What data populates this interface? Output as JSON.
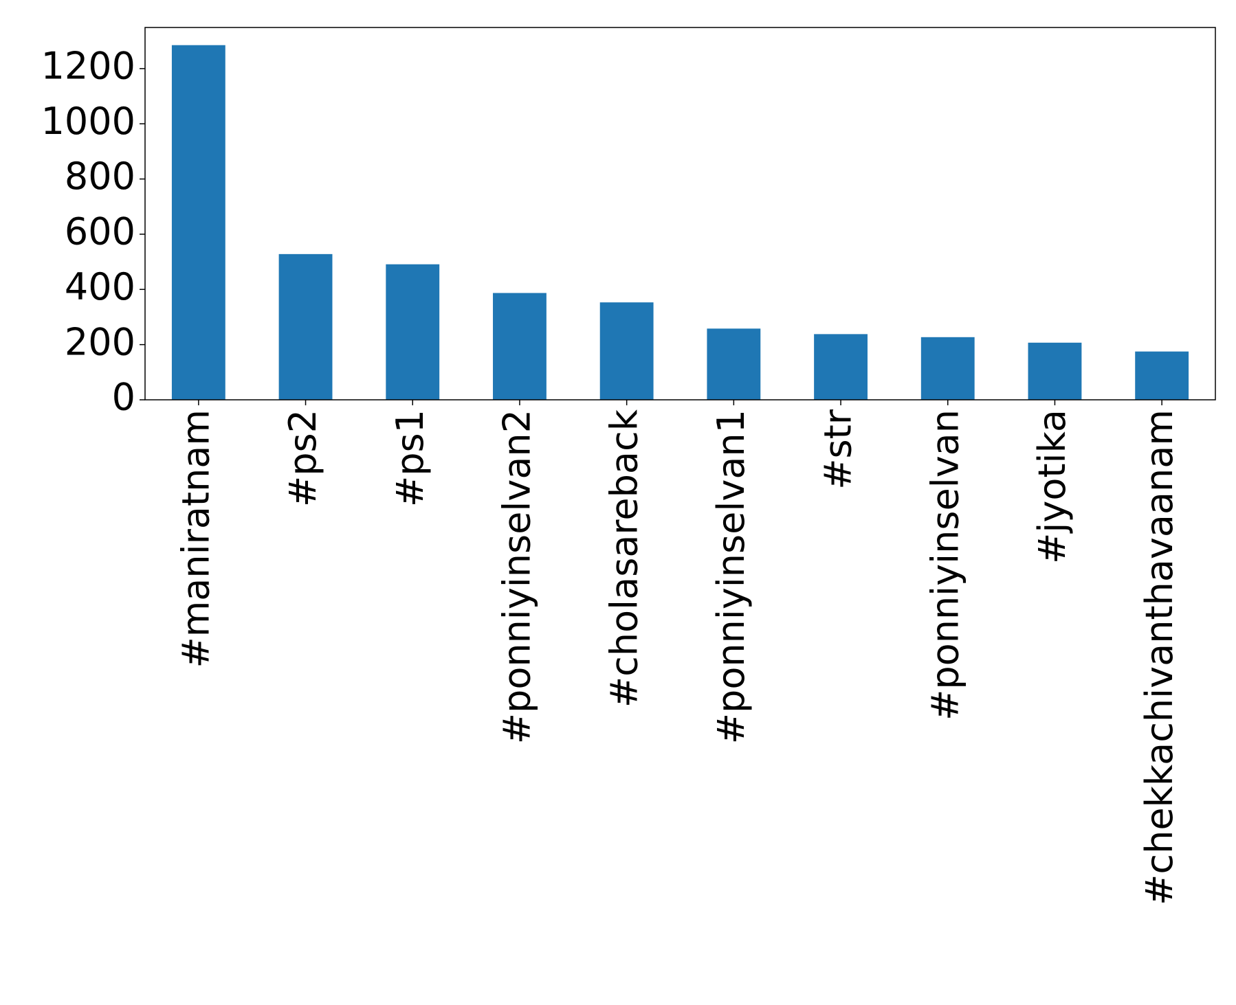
{
  "chart_data": {
    "type": "bar",
    "categories": [
      "#maniratnam",
      "#ps2",
      "#ps1",
      "#ponniyinselvan2",
      "#cholasareback",
      "#ponniyinselvan1",
      "#str",
      "#ponniyinselvan",
      "#jyotika",
      "#chekkachivanthavaanam"
    ],
    "values": [
      1285,
      528,
      491,
      387,
      353,
      258,
      238,
      227,
      207,
      175
    ],
    "color": "#1f77b4",
    "ylim": [
      0,
      1349
    ],
    "yticks": [
      0,
      200,
      400,
      600,
      800,
      1000,
      1200
    ],
    "grid": false
  }
}
